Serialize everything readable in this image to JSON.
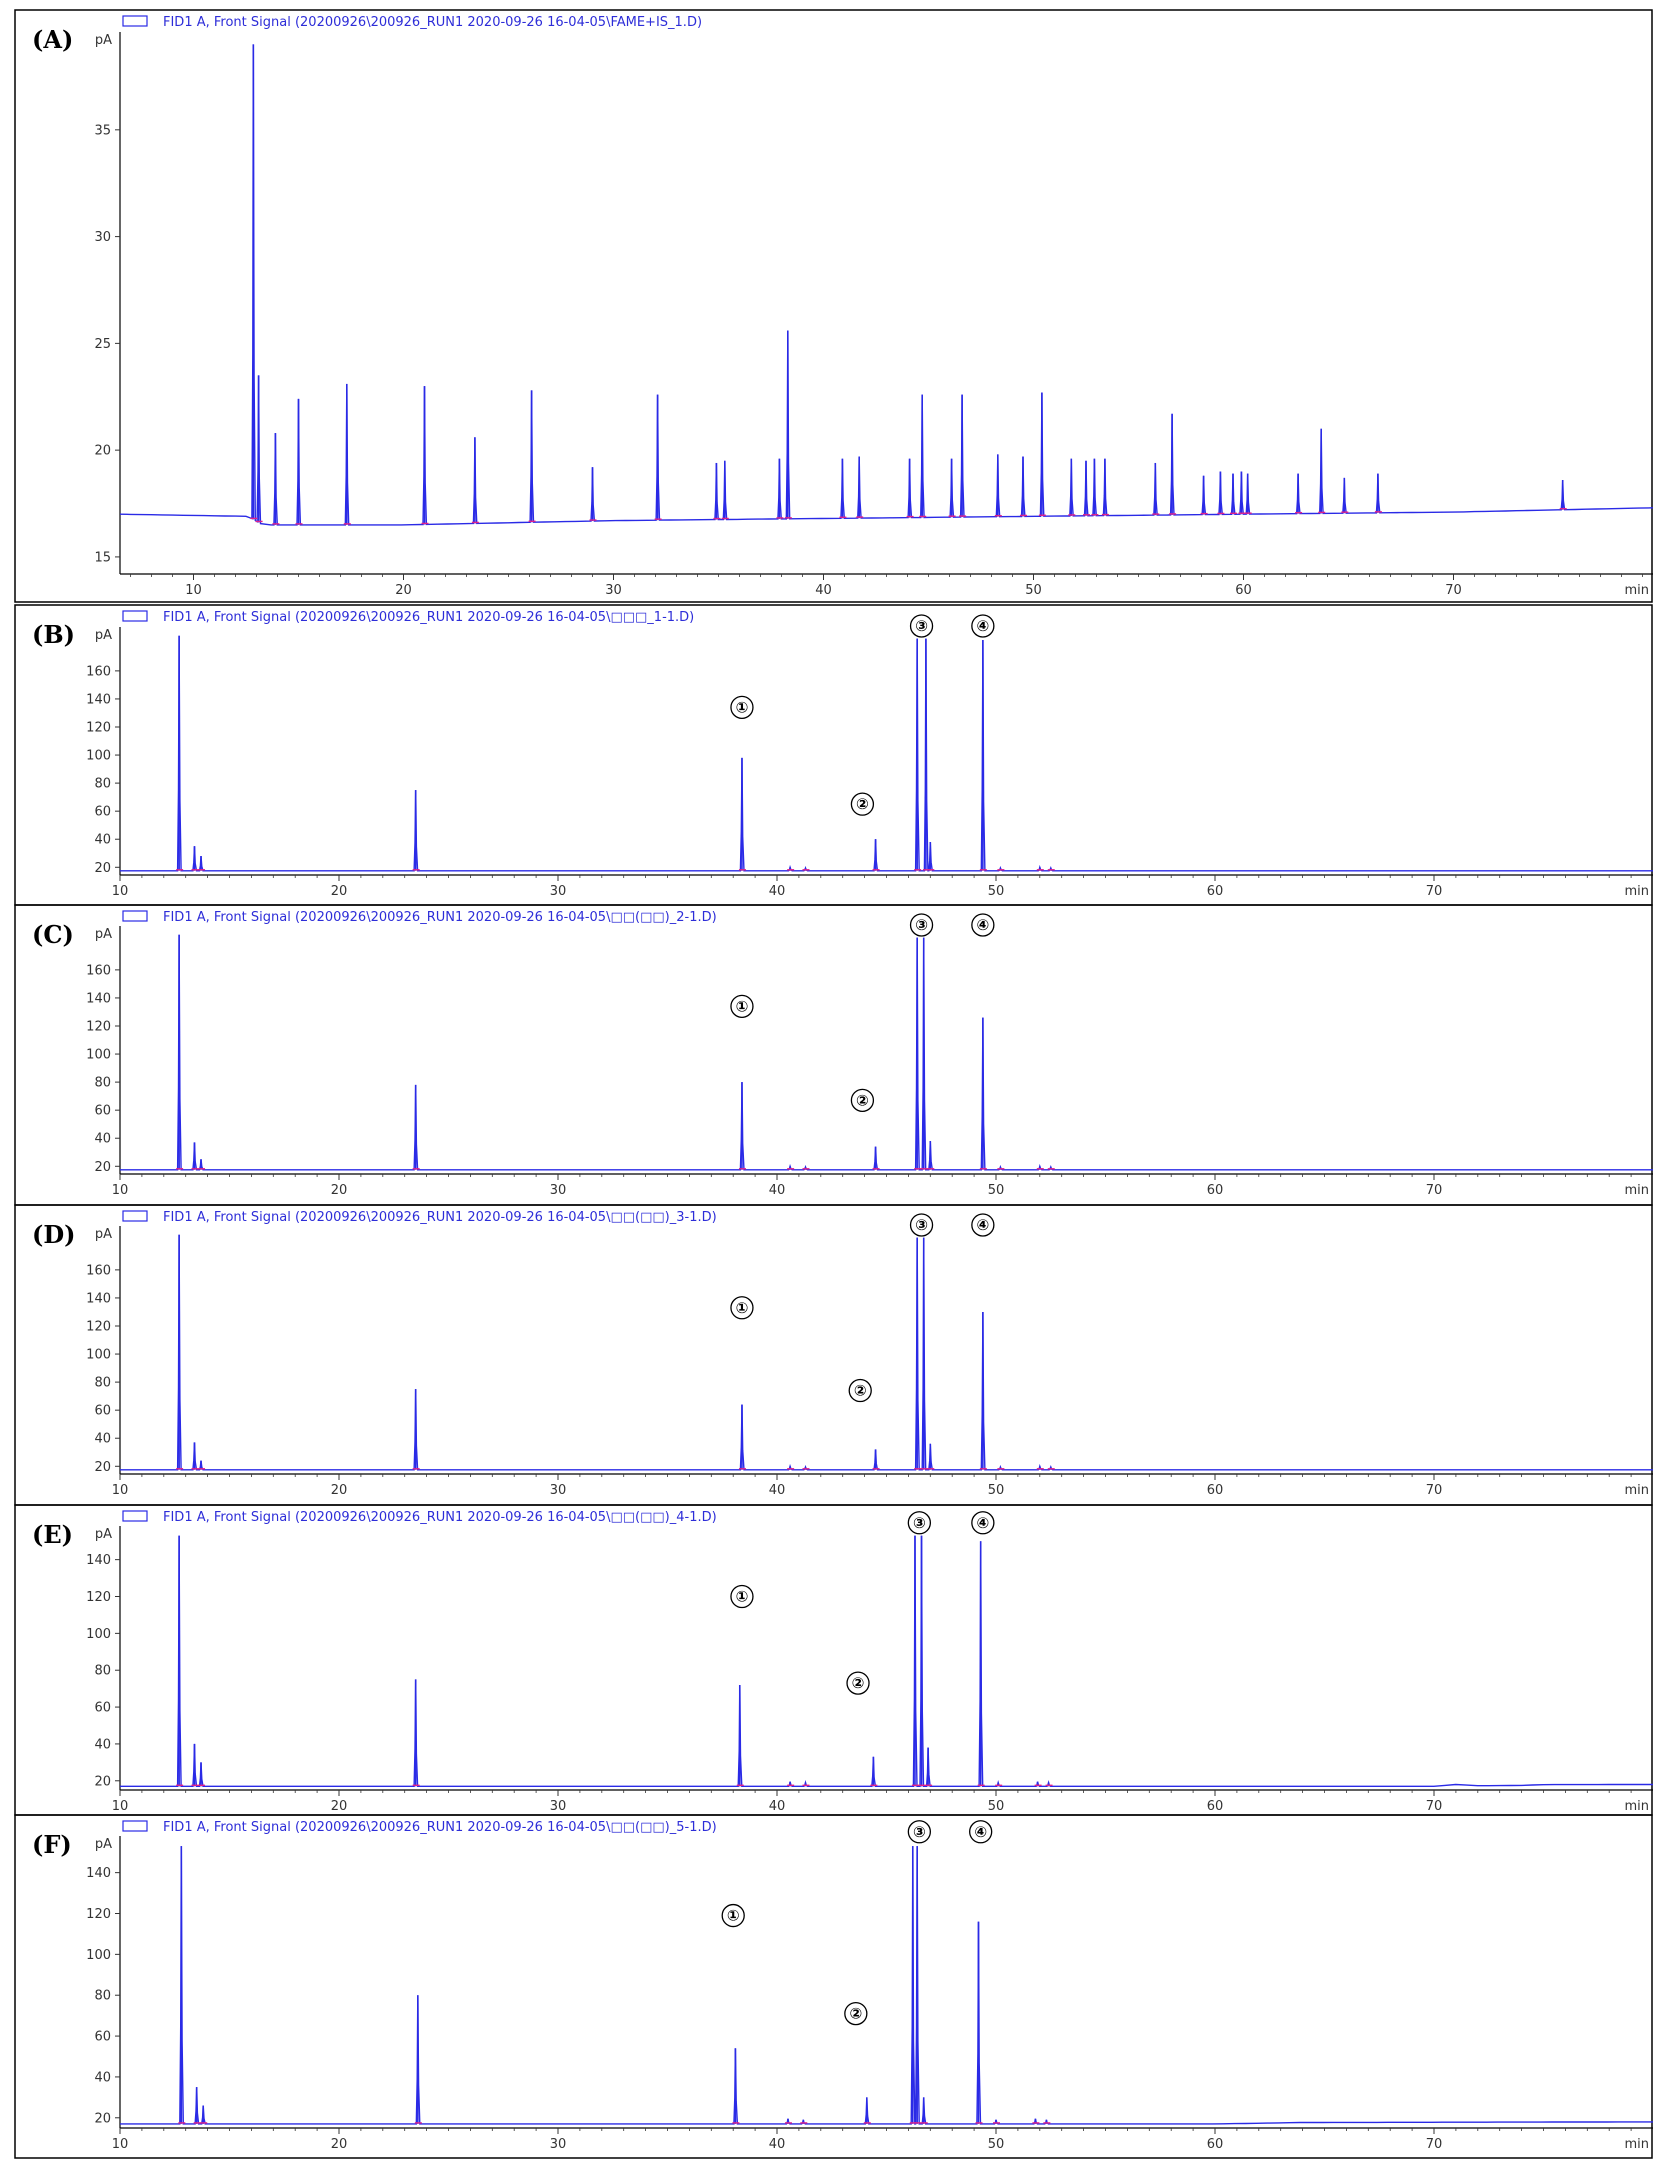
{
  "colors": {
    "trace": "#2a2ae6",
    "baseline_mark": "#e0208a",
    "frame": "#000000",
    "tick": "#333333"
  },
  "chart_data": [
    {
      "type": "line",
      "panel_label": "(A)",
      "legend": "FID1 A, Front Signal (20200926\\200926_RUN1 2020-09-26 16-04-05\\FAME+IS_1.D)",
      "ylabel": "pA",
      "xlabel": "min",
      "xlim": [
        6.5,
        79.5
      ],
      "ylim": [
        14.2,
        39.3
      ],
      "xticks": [
        10,
        20,
        30,
        40,
        50,
        60,
        70
      ],
      "yticks": [
        15,
        20,
        25,
        30,
        35
      ],
      "baseline": [
        [
          6.5,
          17.0
        ],
        [
          12.6,
          16.9
        ],
        [
          13.3,
          16.5
        ],
        [
          20,
          16.5
        ],
        [
          30,
          16.7
        ],
        [
          40,
          16.8
        ],
        [
          50,
          16.9
        ],
        [
          60,
          17.0
        ],
        [
          70,
          17.1
        ],
        [
          79.5,
          17.3
        ]
      ],
      "peaks": [
        [
          12.85,
          39.0
        ],
        [
          13.1,
          23.5
        ],
        [
          13.9,
          20.8
        ],
        [
          15.0,
          22.4
        ],
        [
          17.3,
          23.1
        ],
        [
          21.0,
          23.0
        ],
        [
          23.4,
          20.6
        ],
        [
          26.1,
          22.8
        ],
        [
          29.0,
          19.2
        ],
        [
          32.1,
          22.6
        ],
        [
          34.9,
          19.4
        ],
        [
          35.3,
          19.5
        ],
        [
          37.9,
          19.6
        ],
        [
          38.3,
          25.6
        ],
        [
          40.9,
          19.6
        ],
        [
          41.7,
          19.7
        ],
        [
          44.1,
          19.6
        ],
        [
          44.7,
          22.6
        ],
        [
          46.1,
          19.6
        ],
        [
          46.6,
          22.6
        ],
        [
          48.3,
          19.8
        ],
        [
          49.5,
          19.7
        ],
        [
          50.4,
          22.7
        ],
        [
          51.8,
          19.6
        ],
        [
          52.5,
          19.5
        ],
        [
          52.9,
          19.6
        ],
        [
          53.4,
          19.6
        ],
        [
          55.8,
          19.4
        ],
        [
          56.6,
          21.7
        ],
        [
          58.1,
          18.8
        ],
        [
          58.9,
          19.0
        ],
        [
          59.5,
          18.9
        ],
        [
          59.9,
          19.0
        ],
        [
          60.2,
          18.9
        ],
        [
          62.6,
          18.9
        ],
        [
          63.7,
          21.0
        ],
        [
          64.8,
          18.7
        ],
        [
          66.4,
          18.9
        ],
        [
          75.2,
          18.6
        ]
      ],
      "markers": []
    },
    {
      "type": "line",
      "panel_label": "(B)",
      "legend": "FID1 A, Front Signal (20200926\\200926_RUN1 2020-09-26 16-04-05\\□□□_1-1.D)",
      "ylabel": "pA",
      "xlabel": "min",
      "xlim": [
        10,
        80
      ],
      "ylim": [
        14.5,
        187
      ],
      "xticks": [
        10,
        20,
        30,
        40,
        50,
        60,
        70
      ],
      "yticks": [
        20,
        40,
        60,
        80,
        100,
        120,
        140,
        160
      ],
      "baseline": [
        [
          10,
          17.5
        ],
        [
          80,
          17.5
        ]
      ],
      "peaks": [
        [
          12.7,
          185
        ],
        [
          13.4,
          35
        ],
        [
          13.7,
          28
        ],
        [
          23.5,
          75
        ],
        [
          38.4,
          98
        ],
        [
          40.6,
          20
        ],
        [
          41.3,
          19.5
        ],
        [
          44.5,
          40
        ],
        [
          46.4,
          183
        ],
        [
          46.8,
          183
        ],
        [
          47.0,
          38
        ],
        [
          49.4,
          182
        ],
        [
          50.2,
          19.5
        ],
        [
          52.0,
          20
        ],
        [
          52.5,
          19.5
        ]
      ],
      "markers": [
        {
          "text": "①",
          "x": 38.4,
          "y": 134
        },
        {
          "text": "②",
          "x": 43.9,
          "y": 65
        },
        {
          "text": "③",
          "x": 46.6,
          "y": 192
        },
        {
          "text": "④",
          "x": 49.4,
          "y": 192
        }
      ]
    },
    {
      "type": "line",
      "panel_label": "(C)",
      "legend": "FID1 A, Front Signal (20200926\\200926_RUN1 2020-09-26 16-04-05\\□□(□□)_2-1.D)",
      "ylabel": "pA",
      "xlabel": "min",
      "xlim": [
        10,
        80
      ],
      "ylim": [
        14.5,
        187
      ],
      "xticks": [
        10,
        20,
        30,
        40,
        50,
        60,
        70
      ],
      "yticks": [
        20,
        40,
        60,
        80,
        100,
        120,
        140,
        160
      ],
      "baseline": [
        [
          10,
          17.5
        ],
        [
          80,
          17.5
        ]
      ],
      "peaks": [
        [
          12.7,
          185
        ],
        [
          13.4,
          37
        ],
        [
          13.7,
          25
        ],
        [
          23.5,
          78
        ],
        [
          38.4,
          80
        ],
        [
          40.6,
          20
        ],
        [
          41.3,
          19.5
        ],
        [
          44.5,
          34
        ],
        [
          46.4,
          183
        ],
        [
          46.7,
          183
        ],
        [
          47.0,
          38
        ],
        [
          49.4,
          126
        ],
        [
          50.2,
          19.5
        ],
        [
          52.0,
          20
        ],
        [
          52.5,
          19.5
        ]
      ],
      "markers": [
        {
          "text": "①",
          "x": 38.4,
          "y": 134
        },
        {
          "text": "②",
          "x": 43.9,
          "y": 67
        },
        {
          "text": "③",
          "x": 46.6,
          "y": 192
        },
        {
          "text": "④",
          "x": 49.4,
          "y": 192
        }
      ]
    },
    {
      "type": "line",
      "panel_label": "(D)",
      "legend": "FID1 A, Front Signal (20200926\\200926_RUN1 2020-09-26 16-04-05\\□□(□□)_3-1.D)",
      "ylabel": "pA",
      "xlabel": "min",
      "xlim": [
        10,
        80
      ],
      "ylim": [
        14.5,
        187
      ],
      "xticks": [
        10,
        20,
        30,
        40,
        50,
        60,
        70
      ],
      "yticks": [
        20,
        40,
        60,
        80,
        100,
        120,
        140,
        160
      ],
      "baseline": [
        [
          10,
          17.5
        ],
        [
          80,
          17.5
        ]
      ],
      "peaks": [
        [
          12.7,
          185
        ],
        [
          13.4,
          37
        ],
        [
          13.7,
          24
        ],
        [
          23.5,
          75
        ],
        [
          38.4,
          64
        ],
        [
          40.6,
          20
        ],
        [
          41.3,
          19.5
        ],
        [
          44.5,
          32
        ],
        [
          46.4,
          183
        ],
        [
          46.7,
          183
        ],
        [
          47.0,
          36
        ],
        [
          49.4,
          130
        ],
        [
          50.2,
          19.5
        ],
        [
          52.0,
          20
        ],
        [
          52.5,
          19.5
        ]
      ],
      "markers": [
        {
          "text": "①",
          "x": 38.4,
          "y": 133
        },
        {
          "text": "②",
          "x": 43.8,
          "y": 74
        },
        {
          "text": "③",
          "x": 46.6,
          "y": 192
        },
        {
          "text": "④",
          "x": 49.4,
          "y": 192
        }
      ]
    },
    {
      "type": "line",
      "panel_label": "(E)",
      "legend": "FID1 A, Front Signal (20200926\\200926_RUN1 2020-09-26 16-04-05\\□□(□□)_4-1.D)",
      "ylabel": "pA",
      "xlabel": "min",
      "xlim": [
        10,
        80
      ],
      "ylim": [
        15,
        155
      ],
      "xticks": [
        10,
        20,
        30,
        40,
        50,
        60,
        70
      ],
      "yticks": [
        20,
        40,
        60,
        80,
        100,
        120,
        140
      ],
      "baseline": [
        [
          10,
          17.0
        ],
        [
          70,
          17.0
        ],
        [
          71,
          18.0
        ],
        [
          72,
          17.3
        ],
        [
          74,
          17.5
        ],
        [
          75,
          17.9
        ],
        [
          80,
          18.0
        ]
      ],
      "peaks": [
        [
          12.7,
          153
        ],
        [
          13.4,
          40
        ],
        [
          13.7,
          30
        ],
        [
          23.5,
          75
        ],
        [
          38.3,
          72
        ],
        [
          40.6,
          19.5
        ],
        [
          41.3,
          19
        ],
        [
          44.4,
          33
        ],
        [
          46.3,
          153
        ],
        [
          46.6,
          153
        ],
        [
          46.9,
          38
        ],
        [
          49.3,
          150
        ],
        [
          50.1,
          19
        ],
        [
          51.9,
          19.5
        ],
        [
          52.4,
          19
        ]
      ],
      "markers": [
        {
          "text": "①",
          "x": 38.4,
          "y": 120
        },
        {
          "text": "②",
          "x": 43.7,
          "y": 73
        },
        {
          "text": "③",
          "x": 46.5,
          "y": 160
        },
        {
          "text": "④",
          "x": 49.4,
          "y": 160
        }
      ]
    },
    {
      "type": "line",
      "panel_label": "(F)",
      "legend": "FID1 A, Front Signal (20200926\\200926_RUN1 2020-09-26 16-04-05\\□□(□□)_5-1.D)",
      "ylabel": "pA",
      "xlabel": "min",
      "xlim": [
        10,
        80
      ],
      "ylim": [
        15,
        155
      ],
      "xticks": [
        10,
        20,
        30,
        40,
        50,
        60,
        70
      ],
      "yticks": [
        20,
        40,
        60,
        80,
        100,
        120,
        140
      ],
      "baseline": [
        [
          10,
          17.0
        ],
        [
          60,
          17.0
        ],
        [
          62,
          17.3
        ],
        [
          64,
          17.7
        ],
        [
          80,
          18.0
        ]
      ],
      "peaks": [
        [
          12.8,
          153
        ],
        [
          13.5,
          35
        ],
        [
          13.8,
          26
        ],
        [
          23.6,
          80
        ],
        [
          38.1,
          54
        ],
        [
          40.5,
          19.5
        ],
        [
          41.2,
          19
        ],
        [
          44.1,
          30
        ],
        [
          46.2,
          153
        ],
        [
          46.4,
          153
        ],
        [
          46.7,
          30
        ],
        [
          49.2,
          116
        ],
        [
          50.0,
          19
        ],
        [
          51.8,
          19.5
        ],
        [
          52.3,
          19
        ]
      ],
      "markers": [
        {
          "text": "①",
          "x": 38.0,
          "y": 119
        },
        {
          "text": "②",
          "x": 43.6,
          "y": 71
        },
        {
          "text": "③",
          "x": 46.5,
          "y": 160
        },
        {
          "text": "④",
          "x": 49.3,
          "y": 160
        }
      ]
    }
  ]
}
